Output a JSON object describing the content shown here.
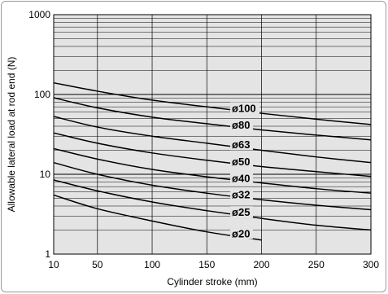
{
  "chart_data": {
    "type": "line",
    "xlabel": "Cylinder stroke (mm)",
    "ylabel": "Allowable lateral load at rod end (N)",
    "xlim": [
      10,
      300
    ],
    "ylim": [
      1,
      1000
    ],
    "yscale": "log",
    "xticks": [
      10,
      50,
      100,
      150,
      200,
      250,
      300
    ],
    "yticks": [
      1,
      10,
      100,
      1000
    ],
    "grid": true,
    "background": "#e4e4e4",
    "line_color": "#000000",
    "series": [
      {
        "name": "ø100",
        "x": [
          10,
          50,
          100,
          150,
          200,
          250,
          300
        ],
        "y": [
          140,
          110,
          85,
          70,
          58,
          49,
          42
        ]
      },
      {
        "name": "ø80",
        "x": [
          10,
          50,
          100,
          150,
          200,
          250,
          300
        ],
        "y": [
          91,
          68,
          52,
          43,
          36,
          31,
          27
        ]
      },
      {
        "name": "ø63",
        "x": [
          10,
          50,
          100,
          150,
          200,
          250,
          300
        ],
        "y": [
          53,
          39,
          30,
          24.5,
          20,
          16.5,
          14
        ]
      },
      {
        "name": "ø50",
        "x": [
          10,
          50,
          100,
          150,
          200,
          250,
          300
        ],
        "y": [
          33,
          24.5,
          18.5,
          15,
          12.5,
          10.8,
          9.4
        ]
      },
      {
        "name": "ø40",
        "x": [
          10,
          50,
          100,
          150,
          200,
          250,
          300
        ],
        "y": [
          21,
          15.5,
          11.5,
          9.3,
          7.8,
          6.6,
          5.8
        ]
      },
      {
        "name": "ø32",
        "x": [
          10,
          50,
          100,
          150,
          200,
          250,
          300
        ],
        "y": [
          14,
          10,
          7.3,
          5.8,
          4.8,
          4.1,
          3.6
        ]
      },
      {
        "name": "ø25",
        "x": [
          10,
          50,
          100,
          150,
          200,
          250,
          300
        ],
        "y": [
          8.5,
          6.2,
          4.5,
          3.5,
          2.8,
          2.3,
          2
        ]
      },
      {
        "name": "ø20",
        "x": [
          10,
          50,
          100,
          150,
          200
        ],
        "y": [
          5.5,
          3.7,
          2.6,
          1.9,
          1.5
        ]
      }
    ]
  }
}
